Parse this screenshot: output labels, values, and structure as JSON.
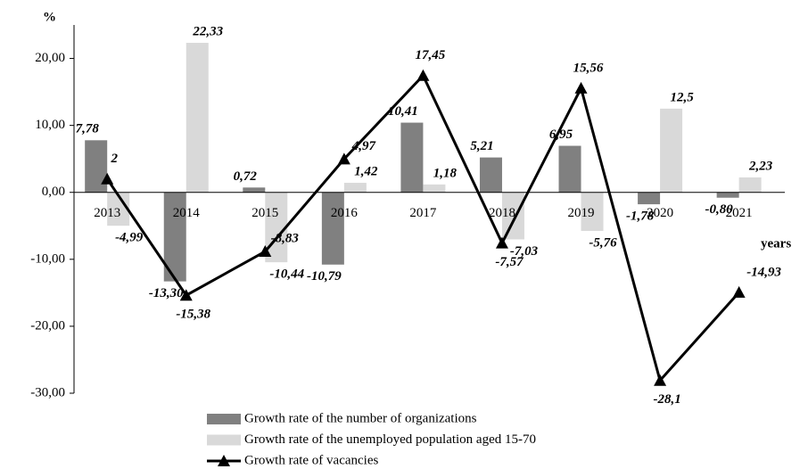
{
  "chart_data": {
    "type": "bar",
    "y_label": "%",
    "x_label": "years",
    "categories": [
      "2013",
      "2014",
      "2015",
      "2016",
      "2017",
      "2018",
      "2019",
      "2020",
      "2021"
    ],
    "series": [
      {
        "name": "Growth rate of the number of organizations",
        "type": "bar",
        "color": "#808080",
        "values": [
          7.78,
          -13.3,
          0.72,
          -10.79,
          10.41,
          5.21,
          6.95,
          -1.78,
          -0.8
        ],
        "value_labels": [
          "7,78",
          "-13,30",
          "0,72",
          "-10,79",
          "10,41",
          "5,21",
          "6,95",
          "-1,78",
          "-0,80"
        ]
      },
      {
        "name": "Growth rate of the unemployed population aged 15-70",
        "type": "bar",
        "color": "#d9d9d9",
        "values": [
          -4.99,
          22.33,
          -10.44,
          1.42,
          1.18,
          -7.03,
          -5.76,
          12.5,
          2.23
        ],
        "value_labels": [
          "-4,99",
          "22,33",
          "-10,44",
          "1,42",
          "1,18",
          "-7,03",
          "-5,76",
          "12,5",
          "2,23"
        ]
      },
      {
        "name": "Growth rate of vacancies",
        "type": "line",
        "color": "#000000",
        "values": [
          2,
          -15.38,
          -8.83,
          4.97,
          17.45,
          -7.57,
          15.56,
          -28.1,
          -14.93
        ],
        "value_labels": [
          "2",
          "-15,38",
          "-8,83",
          "4,97",
          "17,45",
          "-7,57",
          "15,56",
          "-28,1",
          "-14,93"
        ]
      }
    ],
    "ylim": [
      -30,
      25
    ],
    "yticks": [
      {
        "value": 20,
        "label": "20,00"
      },
      {
        "value": 10,
        "label": "10,00"
      },
      {
        "value": 0,
        "label": "0,00"
      },
      {
        "value": -10,
        "label": "-10,00"
      },
      {
        "value": -20,
        "label": "-20,00"
      },
      {
        "value": -30,
        "label": "-30,00"
      }
    ],
    "grid": false,
    "legend": "bottom"
  }
}
